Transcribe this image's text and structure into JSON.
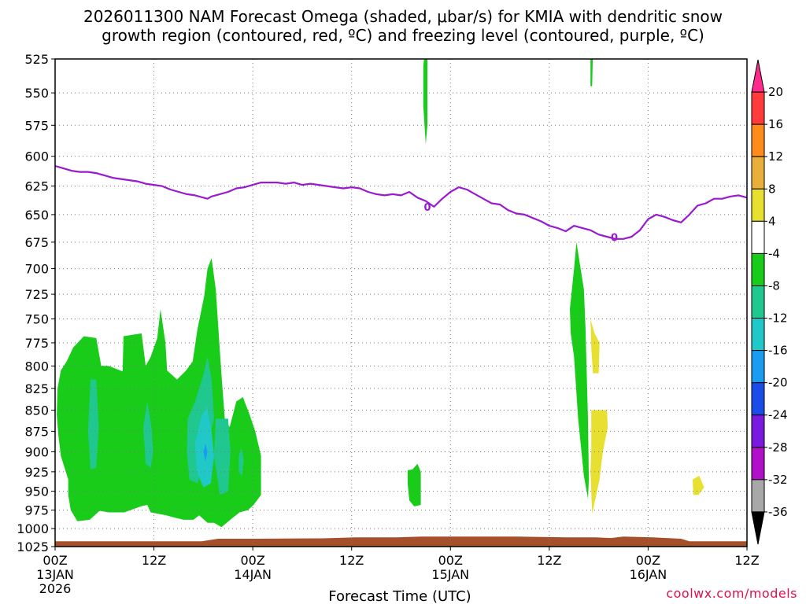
{
  "title_line1": "2026011300 NAM Forecast Omega (shaded, μbar/s) for KMIA with dendritic snow",
  "title_line2": "growth region (contoured, red, ºC) and freezing level (contoured, purple, ºC)",
  "credit": "coolwx.com/models",
  "chart_data": {
    "type": "area",
    "title": "2026011300 NAM Forecast Omega (shaded, μbar/s) for KMIA with dendritic snow growth region (contoured, red, ºC) and freezing level (contoured, purple, ºC)",
    "xlabel": "Forecast Time (UTC)",
    "ylabel": "",
    "x_unit": "forecast hour",
    "xlim": [
      0,
      84
    ],
    "ylim": [
      1025,
      525
    ],
    "y_scale": "log-pressure (mb), inverted",
    "grid": true,
    "x_ticks": [
      {
        "hour": 0,
        "label": "00Z",
        "sub1": "13JAN",
        "sub2": "2026"
      },
      {
        "hour": 12,
        "label": "12Z",
        "sub1": "",
        "sub2": ""
      },
      {
        "hour": 24,
        "label": "00Z",
        "sub1": "14JAN",
        "sub2": ""
      },
      {
        "hour": 36,
        "label": "12Z",
        "sub1": "",
        "sub2": ""
      },
      {
        "hour": 48,
        "label": "00Z",
        "sub1": "15JAN",
        "sub2": ""
      },
      {
        "hour": 60,
        "label": "12Z",
        "sub1": "",
        "sub2": ""
      },
      {
        "hour": 72,
        "label": "00Z",
        "sub1": "16JAN",
        "sub2": ""
      },
      {
        "hour": 84,
        "label": "12Z",
        "sub1": "",
        "sub2": ""
      }
    ],
    "y_ticks": [
      525,
      550,
      575,
      600,
      625,
      650,
      675,
      700,
      725,
      750,
      775,
      800,
      825,
      850,
      875,
      900,
      925,
      950,
      975,
      1000,
      1025
    ],
    "colorbar": {
      "levels": [
        "20",
        "16",
        "12",
        "8",
        "4",
        "-4",
        "-8",
        "-12",
        "-16",
        "-20",
        "-24",
        "-28",
        "-32",
        "-36"
      ],
      "colors": [
        "#ff2a8c",
        "#ff3b3b",
        "#ff8c1a",
        "#e8b03a",
        "#e8e030",
        "#ffffff",
        "#19cc19",
        "#20c890",
        "#20c8c8",
        "#1a9cf0",
        "#1a4ce8",
        "#7a1ae0",
        "#b010c8",
        "#a8a8a8",
        "#000000"
      ]
    },
    "freezing_level": {
      "name": "0",
      "color": "#9a1ad0",
      "points": [
        [
          0,
          608
        ],
        [
          1,
          610
        ],
        [
          2,
          612
        ],
        [
          3,
          613
        ],
        [
          4,
          613
        ],
        [
          5,
          614
        ],
        [
          6,
          616
        ],
        [
          7,
          618
        ],
        [
          8,
          619
        ],
        [
          9,
          620
        ],
        [
          10,
          621
        ],
        [
          11,
          623
        ],
        [
          12,
          624
        ],
        [
          13,
          625
        ],
        [
          14,
          628
        ],
        [
          15,
          630
        ],
        [
          16,
          632
        ],
        [
          17,
          633
        ],
        [
          18,
          635
        ],
        [
          18.5,
          636
        ],
        [
          19,
          634
        ],
        [
          20,
          632
        ],
        [
          21,
          630
        ],
        [
          22,
          627
        ],
        [
          23,
          626
        ],
        [
          24,
          624
        ],
        [
          25,
          622
        ],
        [
          26,
          622
        ],
        [
          27,
          622
        ],
        [
          28,
          623
        ],
        [
          29,
          622
        ],
        [
          30,
          624
        ],
        [
          31,
          623
        ],
        [
          32,
          624
        ],
        [
          33,
          625
        ],
        [
          34,
          626
        ],
        [
          35,
          627
        ],
        [
          36,
          626
        ],
        [
          37,
          627
        ],
        [
          38,
          630
        ],
        [
          39,
          632
        ],
        [
          40,
          633
        ],
        [
          41,
          632
        ],
        [
          42,
          633
        ],
        [
          43,
          630
        ],
        [
          44,
          635
        ],
        [
          45,
          638
        ],
        [
          46,
          643
        ],
        [
          47,
          636
        ],
        [
          48,
          630
        ],
        [
          49,
          626
        ],
        [
          50,
          628
        ],
        [
          51,
          632
        ],
        [
          52,
          636
        ],
        [
          53,
          640
        ],
        [
          54,
          641
        ],
        [
          55,
          646
        ],
        [
          56,
          649
        ],
        [
          57,
          650
        ],
        [
          58,
          653
        ],
        [
          59,
          656
        ],
        [
          60,
          660
        ],
        [
          61,
          662
        ],
        [
          62,
          665
        ],
        [
          63,
          660
        ],
        [
          64,
          662
        ],
        [
          65,
          664
        ],
        [
          66,
          668
        ],
        [
          67,
          670
        ],
        [
          68,
          672
        ],
        [
          69,
          672
        ],
        [
          70,
          670
        ],
        [
          71,
          664
        ],
        [
          72,
          654
        ],
        [
          73,
          650
        ],
        [
          74,
          652
        ],
        [
          75,
          655
        ],
        [
          76,
          657
        ],
        [
          77,
          650
        ],
        [
          78,
          642
        ],
        [
          79,
          640
        ],
        [
          80,
          636
        ],
        [
          81,
          636
        ],
        [
          82,
          634
        ],
        [
          83,
          633
        ],
        [
          84,
          635
        ]
      ]
    },
    "omega_regions": [
      {
        "name": "-4",
        "color": "#19cc19",
        "polygons": [
          [
            [
              0.3,
              825
            ],
            [
              0.7,
              805
            ],
            [
              1.4,
              795
            ],
            [
              2.2,
              780
            ],
            [
              3.5,
              768
            ],
            [
              5.0,
              770
            ],
            [
              5.6,
              800
            ],
            [
              6.5,
              800
            ],
            [
              8.2,
              806
            ],
            [
              8.3,
              768
            ],
            [
              10.5,
              765
            ],
            [
              11.0,
              800
            ],
            [
              11.6,
              790
            ],
            [
              12.4,
              770
            ],
            [
              12.8,
              740
            ],
            [
              13.4,
              775
            ],
            [
              13.6,
              805
            ],
            [
              14.8,
              815
            ],
            [
              15.9,
              805
            ],
            [
              16.7,
              795
            ],
            [
              17.3,
              760
            ],
            [
              18.1,
              727
            ],
            [
              18.5,
              700
            ],
            [
              19.0,
              690
            ],
            [
              19.5,
              720
            ],
            [
              20.2,
              810
            ],
            [
              20.6,
              860
            ],
            [
              21.2,
              870
            ],
            [
              22.0,
              840
            ],
            [
              22.8,
              835
            ],
            [
              23.6,
              855
            ],
            [
              24.3,
              875
            ],
            [
              25.0,
              905
            ],
            [
              25.0,
              955
            ],
            [
              24.1,
              968
            ],
            [
              23.4,
              975
            ],
            [
              22.4,
              978
            ],
            [
              21.6,
              985
            ],
            [
              20.2,
              998
            ],
            [
              19.3,
              992
            ],
            [
              18.5,
              992
            ],
            [
              17.5,
              982
            ],
            [
              16.8,
              988
            ],
            [
              15.6,
              988
            ],
            [
              14.5,
              985
            ],
            [
              13.5,
              982
            ],
            [
              11.6,
              978
            ],
            [
              11.2,
              968
            ],
            [
              10.4,
              970
            ],
            [
              8.4,
              978
            ],
            [
              6.5,
              978
            ],
            [
              5.4,
              976
            ],
            [
              4.2,
              988
            ],
            [
              2.7,
              990
            ],
            [
              1.9,
              975
            ],
            [
              1.6,
              955
            ],
            [
              1.6,
              935
            ],
            [
              0.7,
              905
            ],
            [
              0.4,
              880
            ],
            [
              0.2,
              855
            ]
          ],
          [
            [
              42.8,
              923
            ],
            [
              43.4,
              922
            ],
            [
              44.0,
              915
            ],
            [
              44.4,
              925
            ],
            [
              44.4,
              968
            ],
            [
              43.6,
              970
            ],
            [
              43.0,
              962
            ],
            [
              42.8,
              940
            ]
          ],
          [
            [
              44.9,
              520
            ],
            [
              45.2,
              520
            ],
            [
              45.2,
              575
            ],
            [
              45.0,
              590
            ],
            [
              44.7,
              560
            ],
            [
              44.7,
              530
            ]
          ],
          [
            [
              62.5,
              740
            ],
            [
              63.0,
              700
            ],
            [
              63.3,
              675
            ],
            [
              63.7,
              695
            ],
            [
              64.2,
              720
            ],
            [
              64.4,
              760
            ],
            [
              64.7,
              860
            ],
            [
              64.8,
              935
            ],
            [
              64.7,
              960
            ],
            [
              64.2,
              930
            ],
            [
              63.5,
              860
            ],
            [
              63.0,
              790
            ],
            [
              62.6,
              765
            ]
          ],
          [
            [
              65.0,
              520
            ],
            [
              65.3,
              520
            ],
            [
              65.2,
              545
            ],
            [
              65.0,
              545
            ]
          ]
        ]
      },
      {
        "name": "-8",
        "color": "#20c890",
        "polygons": [
          [
            [
              4.0,
              875
            ],
            [
              4.3,
              815
            ],
            [
              5.0,
              815
            ],
            [
              5.3,
              870
            ],
            [
              5.0,
              920
            ],
            [
              4.3,
              922
            ]
          ],
          [
            [
              10.7,
              870
            ],
            [
              11.2,
              840
            ],
            [
              11.7,
              870
            ],
            [
              11.9,
              900
            ],
            [
              11.6,
              920
            ],
            [
              11.0,
              915
            ]
          ],
          [
            [
              19.5,
              860
            ],
            [
              21.0,
              860
            ],
            [
              21.3,
              900
            ],
            [
              21.0,
              950
            ],
            [
              20.0,
              955
            ],
            [
              19.3,
              905
            ]
          ],
          [
            [
              16.1,
              860
            ],
            [
              17.0,
              840
            ],
            [
              18.0,
              810
            ],
            [
              18.5,
              790
            ],
            [
              19.0,
              815
            ],
            [
              19.3,
              860
            ],
            [
              17.3,
              940
            ],
            [
              16.3,
              935
            ],
            [
              16.0,
              900
            ]
          ],
          [
            [
              22.3,
              905
            ],
            [
              22.6,
              895
            ],
            [
              22.9,
              910
            ],
            [
              22.7,
              930
            ],
            [
              22.3,
              925
            ]
          ]
        ]
      },
      {
        "name": "-12",
        "color": "#20c8c8",
        "polygons": [
          [
            [
              17.0,
              890
            ],
            [
              17.7,
              860
            ],
            [
              18.4,
              845
            ],
            [
              19.0,
              875
            ],
            [
              19.3,
              905
            ],
            [
              18.9,
              940
            ],
            [
              18.0,
              945
            ],
            [
              17.2,
              925
            ]
          ]
        ]
      },
      {
        "name": "-16",
        "color": "#1a9cf0",
        "polygons": [
          [
            [
              18.0,
              900
            ],
            [
              18.25,
              890
            ],
            [
              18.5,
              900
            ],
            [
              18.25,
              912
            ]
          ]
        ]
      },
      {
        "name": "4",
        "color": "#e8e030",
        "polygons": [
          [
            [
              65.0,
              750
            ],
            [
              65.5,
              765
            ],
            [
              66.1,
              775
            ],
            [
              66.0,
              808
            ],
            [
              65.3,
              808
            ],
            [
              65.1,
              780
            ]
          ],
          [
            [
              65.1,
              850
            ],
            [
              67.0,
              850
            ],
            [
              67.1,
              870
            ],
            [
              66.5,
              900
            ],
            [
              66.1,
              935
            ],
            [
              65.6,
              960
            ],
            [
              65.2,
              980
            ],
            [
              65.0,
              925
            ],
            [
              65.1,
              895
            ]
          ],
          [
            [
              77.4,
              935
            ],
            [
              78.2,
              930
            ],
            [
              78.8,
              945
            ],
            [
              78.1,
              955
            ],
            [
              77.5,
              955
            ]
          ]
        ]
      }
    ],
    "ground": {
      "name": "ground",
      "color": "#a5502a",
      "bottom": 1025,
      "top_default": 1017.5
    }
  }
}
